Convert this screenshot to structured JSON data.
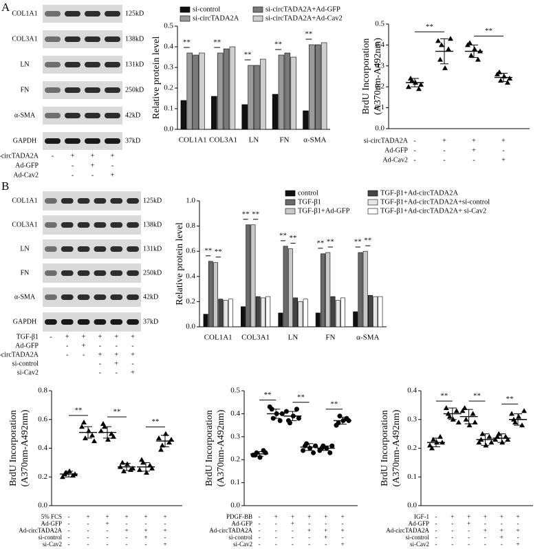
{
  "blots": [
    {
      "panel": "A",
      "rows": [
        {
          "name": "COL1A1",
          "size": "125kD"
        },
        {
          "name": "COL3A1",
          "size": "138kD"
        },
        {
          "name": "LN",
          "size": "131kD"
        },
        {
          "name": "FN",
          "size": "250kD"
        },
        {
          "name": "α-SMA",
          "size": "42kD"
        },
        {
          "name": "GAPDH",
          "size": "37kD"
        }
      ],
      "conditions": [
        {
          "name": "si-circTADA2A",
          "signs": [
            "-",
            "+",
            "+",
            "+"
          ]
        },
        {
          "name": "Ad-GFP",
          "signs": [
            null,
            "-",
            "+",
            "-"
          ]
        },
        {
          "name": "Ad-Cav2",
          "signs": [
            null,
            "-",
            "-",
            "+"
          ]
        }
      ]
    },
    {
      "panel": "B",
      "rows": [
        {
          "name": "COL1A1",
          "size": "125kD"
        },
        {
          "name": "COL3A1",
          "size": "138kD"
        },
        {
          "name": "LN",
          "size": "131kD"
        },
        {
          "name": "FN",
          "size": "250kD"
        },
        {
          "name": "α-SMA",
          "size": "42kD"
        },
        {
          "name": "GAPDH",
          "size": "37kD"
        }
      ],
      "conditions": [
        {
          "name": "TGF-β1",
          "signs": [
            "-",
            "+",
            "+",
            "+",
            "+",
            "+"
          ]
        },
        {
          "name": "Ad-GFP",
          "signs": [
            null,
            "-",
            "+",
            "-",
            "-",
            "-"
          ]
        },
        {
          "name": "Ad-circTADA2A",
          "signs": [
            null,
            "-",
            "-",
            "+",
            "+",
            "+"
          ]
        },
        {
          "name": "si-control",
          "signs": [
            null,
            null,
            null,
            "-",
            "+",
            "-"
          ]
        },
        {
          "name": "si-Cav2",
          "signs": [
            null,
            null,
            null,
            "-",
            "-",
            "+"
          ]
        }
      ]
    }
  ],
  "chart_data": [
    {
      "type": "bar",
      "ylabel": "Relative protein level",
      "categories": [
        "COL1A1",
        "COL3A1",
        "LN",
        "FN",
        "α-SMA"
      ],
      "series": [
        {
          "name": "si-control",
          "color": "#111111",
          "values": [
            0.14,
            0.16,
            0.12,
            0.17,
            0.09
          ]
        },
        {
          "name": "si-circTADA2A",
          "color": "#9a9a9a",
          "values": [
            0.37,
            0.37,
            0.31,
            0.36,
            0.41
          ]
        },
        {
          "name": "si-circTADA2A+Ad-GFP",
          "color": "#7a7a7a",
          "values": [
            0.36,
            0.39,
            0.31,
            0.37,
            0.41
          ]
        },
        {
          "name": "si-circTADA2A+Ad-Cav2",
          "color": "#cfcfcf",
          "values": [
            0.37,
            0.4,
            0.34,
            0.35,
            0.42
          ]
        }
      ],
      "annotations": [
        [
          "**"
        ],
        [
          "**"
        ],
        [
          "**"
        ],
        [
          "**"
        ],
        [
          "**"
        ]
      ],
      "ylim": [
        0,
        0.5
      ],
      "yticks": [
        {
          "value": 0,
          "label": "0.0"
        },
        {
          "value": 0.1,
          "label": "0.1"
        },
        {
          "value": 0.2,
          "label": "0.2"
        },
        {
          "value": 0.3,
          "label": "0.3"
        },
        {
          "value": 0.4,
          "label": "0.4"
        },
        {
          "value": 0.5,
          "label": "0.5"
        }
      ],
      "legend": "top"
    },
    {
      "type": "dot",
      "marker": "triangle",
      "ylabel": [
        "BrdU Incorporation",
        "(A370nm-A492nm)"
      ],
      "values": [
        [
          0.2,
          0.23,
          0.22,
          0.19,
          0.24,
          0.21
        ],
        [
          0.42,
          0.4,
          0.29,
          0.38,
          0.33,
          0.43
        ],
        [
          0.4,
          0.35,
          0.38,
          0.33,
          0.41,
          0.37
        ],
        [
          0.26,
          0.23,
          0.25,
          0.22,
          0.27,
          0.24
        ]
      ],
      "means": [
        0.22,
        0.37,
        0.37,
        0.245
      ],
      "sds": [
        0.02,
        0.06,
        0.03,
        0.02
      ],
      "comparisons": [
        {
          "groups": [
            0,
            1
          ],
          "label": "**"
        },
        {
          "groups": [
            2,
            3
          ],
          "label": "**"
        }
      ],
      "conditions": [
        {
          "name": "si-circTADA2A",
          "signs": [
            "-",
            "+",
            "+",
            "+"
          ]
        },
        {
          "name": "Ad-GFP",
          "signs": [
            "-",
            "-",
            "+",
            "-"
          ]
        },
        {
          "name": "Ad-Cav2",
          "signs": [
            "-",
            "-",
            "-",
            "+"
          ]
        }
      ],
      "ylim": [
        0,
        0.5
      ],
      "yticks": [
        {
          "value": 0,
          "label": "0.0"
        },
        {
          "value": 0.1,
          "label": "0.1"
        },
        {
          "value": 0.2,
          "label": "0.2"
        },
        {
          "value": 0.3,
          "label": "0.3"
        },
        {
          "value": 0.4,
          "label": "0.4"
        },
        {
          "value": 0.5,
          "label": "0.5"
        }
      ]
    },
    {
      "type": "bar",
      "ylabel": "Relative protein level",
      "categories": [
        "COL1A1",
        "COL3A1",
        "LN",
        "FN",
        "α-SMA"
      ],
      "series": [
        {
          "name": "control",
          "color": "#111111",
          "values": [
            0.1,
            0.16,
            0.11,
            0.11,
            0.12
          ]
        },
        {
          "name": "TGF-β1",
          "color": "#6a6a6a",
          "values": [
            0.52,
            0.81,
            0.64,
            0.58,
            0.59
          ]
        },
        {
          "name": "TGF-β1+Ad-GFP",
          "color": "#c8c8c8",
          "values": [
            0.51,
            0.81,
            0.62,
            0.59,
            0.6
          ]
        },
        {
          "name": "TGF-β1+Ad-circTADA2A",
          "color": "#444444",
          "values": [
            0.22,
            0.24,
            0.23,
            0.24,
            0.25
          ]
        },
        {
          "name": "TGF-β1+Ad-circTADA2A+si-control",
          "color": "#e6e6e6",
          "values": [
            0.21,
            0.23,
            0.2,
            0.21,
            0.24
          ]
        },
        {
          "name": "TGF-β1+Ad-circTADA2A+ si-Cav2",
          "color": "#ffffff",
          "values": [
            0.22,
            0.24,
            0.22,
            0.23,
            0.24
          ]
        }
      ],
      "annotations": [
        [
          "**",
          "**"
        ],
        [
          "**",
          "**"
        ],
        [
          "**",
          "**"
        ],
        [
          "**",
          "**"
        ],
        [
          "**",
          "**"
        ]
      ],
      "ylim": [
        0,
        1
      ],
      "yticks": [
        {
          "value": 0,
          "label": "0.0"
        },
        {
          "value": 0.2,
          "label": "0.2"
        },
        {
          "value": 0.4,
          "label": "0.4"
        },
        {
          "value": 0.6,
          "label": "0.6"
        },
        {
          "value": 0.8,
          "label": "0.8"
        },
        {
          "value": 1,
          "label": "1.0"
        }
      ],
      "legend": "top"
    },
    {
      "type": "dot",
      "marker": "triangle",
      "ylabel": [
        "BrdU Incorporation",
        "(A370nm-A492nm)"
      ],
      "values": [
        [
          0.2,
          0.23,
          0.24,
          0.21,
          0.22,
          0.22
        ],
        [
          0.55,
          0.47,
          0.52,
          0.49,
          0.58,
          0.45
        ],
        [
          0.52,
          0.55,
          0.46,
          0.5,
          0.57,
          0.48
        ],
        [
          0.27,
          0.24,
          0.29,
          0.25,
          0.3,
          0.26
        ],
        [
          0.25,
          0.3,
          0.23,
          0.28,
          0.32,
          0.26
        ],
        [
          0.47,
          0.42,
          0.5,
          0.44,
          0.39,
          0.46
        ]
      ],
      "means": [
        0.22,
        0.51,
        0.51,
        0.27,
        0.27,
        0.45
      ],
      "sds": [
        0.02,
        0.04,
        0.04,
        0.025,
        0.03,
        0.04
      ],
      "comparisons": [
        {
          "groups": [
            0,
            1
          ],
          "label": "**"
        },
        {
          "groups": [
            2,
            3
          ],
          "label": "**"
        },
        {
          "groups": [
            4,
            5
          ],
          "label": "**"
        }
      ],
      "conditions": [
        {
          "name": "5% FCS",
          "signs": [
            "-",
            "+",
            "+",
            "+",
            "+",
            "+"
          ]
        },
        {
          "name": "Ad-GFP",
          "signs": [
            "-",
            "-",
            "+",
            "-",
            "-",
            "-"
          ]
        },
        {
          "name": "Ad-circTADA2A",
          "signs": [
            "-",
            "-",
            "-",
            "+",
            "+",
            "+"
          ]
        },
        {
          "name": "si-control",
          "signs": [
            "-",
            "-",
            "-",
            "-",
            "+",
            "-"
          ]
        },
        {
          "name": "si-Cav2",
          "signs": [
            "-",
            "-",
            "-",
            "-",
            "-",
            "+"
          ]
        }
      ],
      "ylim": [
        0,
        0.8
      ],
      "yticks": [
        {
          "value": 0,
          "label": "0.0"
        },
        {
          "value": 0.2,
          "label": "0.2"
        },
        {
          "value": 0.4,
          "label": "0.4"
        },
        {
          "value": 0.6,
          "label": "0.6"
        },
        {
          "value": 0.8,
          "label": "0.8"
        }
      ]
    },
    {
      "type": "dot",
      "marker": "circle",
      "ylabel": [
        "BrdU Incorporation",
        "(A370nm-A492nm)"
      ],
      "values": [
        [
          0.22,
          0.23,
          0.21,
          0.24,
          0.22,
          0.23
        ],
        [
          0.43,
          0.38,
          0.4,
          0.37,
          0.42,
          0.4
        ],
        [
          0.41,
          0.36,
          0.39,
          0.42,
          0.37,
          0.38
        ],
        [
          0.24,
          0.27,
          0.25,
          0.23,
          0.26,
          0.26
        ],
        [
          0.24,
          0.26,
          0.25,
          0.23,
          0.25,
          0.26
        ],
        [
          0.35,
          0.39,
          0.37,
          0.38,
          0.36,
          0.37
        ]
      ],
      "means": [
        0.225,
        0.4,
        0.39,
        0.255,
        0.25,
        0.37
      ],
      "sds": [
        0.01,
        0.02,
        0.02,
        0.015,
        0.01,
        0.015
      ],
      "comparisons": [
        {
          "groups": [
            0,
            1
          ],
          "label": "**"
        },
        {
          "groups": [
            2,
            3
          ],
          "label": "**"
        },
        {
          "groups": [
            4,
            5
          ],
          "label": "**"
        }
      ],
      "conditions": [
        {
          "name": "PDGF-BB",
          "signs": [
            "-",
            "+",
            "+",
            "+",
            "+",
            "+"
          ]
        },
        {
          "name": "Ad-GFP",
          "signs": [
            "-",
            "-",
            "+",
            "-",
            "-",
            "-"
          ]
        },
        {
          "name": "Ad-circTADA2A",
          "signs": [
            "-",
            "-",
            "-",
            "+",
            "+",
            "+"
          ]
        },
        {
          "name": "si-control",
          "signs": [
            "-",
            "-",
            "-",
            "-",
            "+",
            "-"
          ]
        },
        {
          "name": "si-Cav2",
          "signs": [
            "-",
            "-",
            "-",
            "-",
            "-",
            "+"
          ]
        }
      ],
      "ylim": [
        0,
        0.5
      ],
      "yticks": [
        {
          "value": 0,
          "label": "0.0"
        },
        {
          "value": 0.1,
          "label": "0.1"
        },
        {
          "value": 0.2,
          "label": "0.2"
        },
        {
          "value": 0.3,
          "label": "0.3"
        },
        {
          "value": 0.4,
          "label": "0.4"
        },
        {
          "value": 0.5,
          "label": "0.5"
        }
      ]
    },
    {
      "type": "dot",
      "marker": "triangle",
      "ylabel": [
        "BrdU Incorporation",
        "(A370nm-A492nm)"
      ],
      "values": [
        [
          0.21,
          0.23,
          0.22,
          0.24,
          0.2,
          0.22
        ],
        [
          0.34,
          0.31,
          0.3,
          0.33,
          0.32,
          0.29
        ],
        [
          0.33,
          0.3,
          0.28,
          0.32,
          0.34,
          0.29
        ],
        [
          0.22,
          0.25,
          0.21,
          0.24,
          0.23,
          0.22
        ],
        [
          0.23,
          0.25,
          0.22,
          0.24,
          0.24,
          0.23
        ],
        [
          0.32,
          0.29,
          0.31,
          0.28,
          0.3,
          0.33
        ]
      ],
      "means": [
        0.22,
        0.32,
        0.31,
        0.23,
        0.235,
        0.3
      ],
      "sds": [
        0.015,
        0.02,
        0.025,
        0.02,
        0.015,
        0.02
      ],
      "comparisons": [
        {
          "groups": [
            0,
            1
          ],
          "label": "**"
        },
        {
          "groups": [
            2,
            3
          ],
          "label": "**"
        },
        {
          "groups": [
            4,
            5
          ],
          "label": "**"
        }
      ],
      "conditions": [
        {
          "name": "IGF-1",
          "signs": [
            "-",
            "+",
            "+",
            "+",
            "+",
            "+"
          ]
        },
        {
          "name": "Ad-GFP",
          "signs": [
            "-",
            "-",
            "+",
            "-",
            "-",
            "-"
          ]
        },
        {
          "name": "Ad-circTADA2A",
          "signs": [
            "-",
            "-",
            "-",
            "+",
            "+",
            "+"
          ]
        },
        {
          "name": "si-control",
          "signs": [
            "-",
            "-",
            "-",
            "-",
            "+",
            "-"
          ]
        },
        {
          "name": "si-Cav2",
          "signs": [
            "-",
            "-",
            "-",
            "-",
            "-",
            "+"
          ]
        }
      ],
      "ylim": [
        0,
        0.4
      ],
      "yticks": [
        {
          "value": 0,
          "label": "0.0"
        },
        {
          "value": 0.1,
          "label": "0.1"
        },
        {
          "value": 0.2,
          "label": "0.2"
        },
        {
          "value": 0.3,
          "label": "0.3"
        },
        {
          "value": 0.4,
          "label": "0.4"
        }
      ]
    }
  ]
}
